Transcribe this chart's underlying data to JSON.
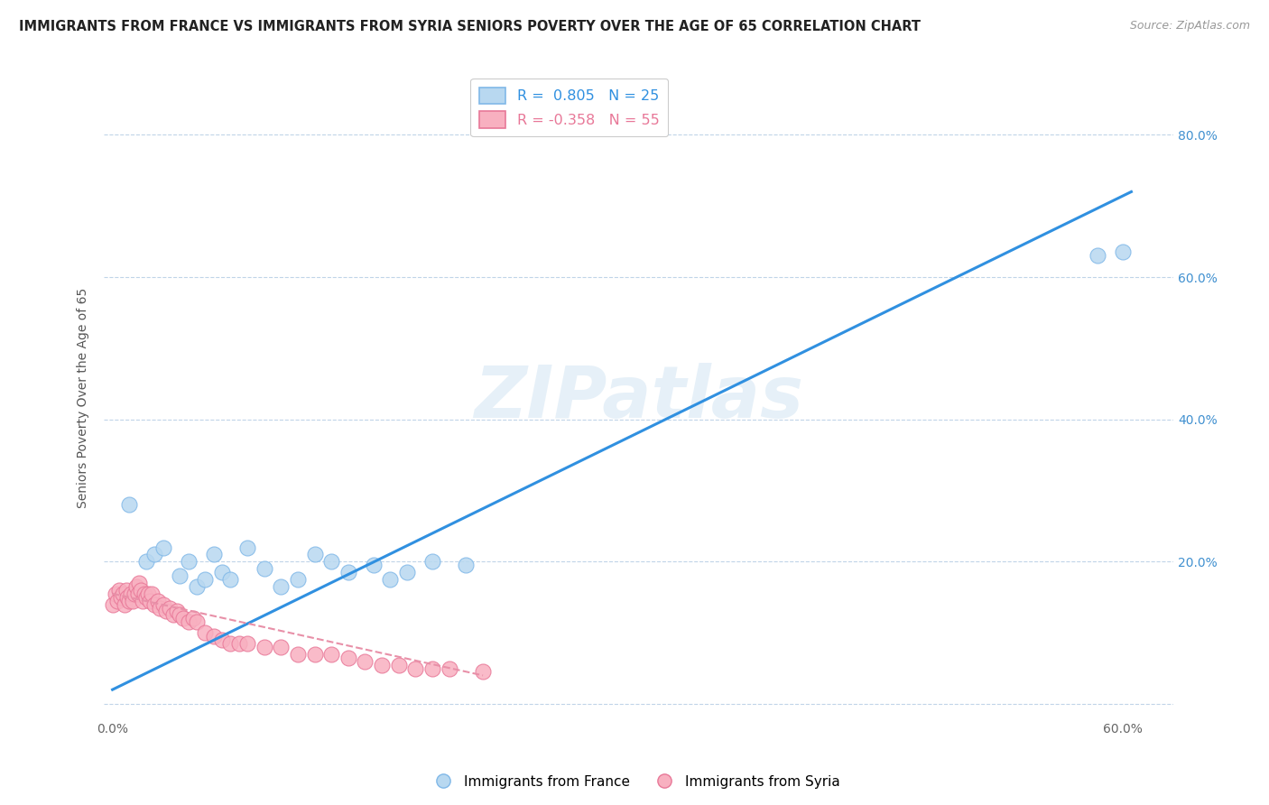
{
  "title": "IMMIGRANTS FROM FRANCE VS IMMIGRANTS FROM SYRIA SENIORS POVERTY OVER THE AGE OF 65 CORRELATION CHART",
  "source": "Source: ZipAtlas.com",
  "ylabel": "Seniors Poverty Over the Age of 65",
  "xlim": [
    -0.005,
    0.63
  ],
  "ylim": [
    -0.02,
    0.88
  ],
  "xticks": [
    0.0,
    0.1,
    0.2,
    0.3,
    0.4,
    0.5,
    0.6
  ],
  "xtick_labels": [
    "0.0%",
    "",
    "",
    "",
    "",
    "",
    "60.0%"
  ],
  "yticks": [
    0.0,
    0.2,
    0.4,
    0.6,
    0.8
  ],
  "ytick_labels_right": [
    "",
    "20.0%",
    "40.0%",
    "60.0%",
    "80.0%"
  ],
  "watermark": "ZIPatlas",
  "france_color": "#b8d8f0",
  "france_edge": "#80b8e8",
  "syria_color": "#f8b0c0",
  "syria_edge": "#e87898",
  "france_R": 0.805,
  "france_N": 25,
  "syria_R": -0.358,
  "syria_N": 55,
  "france_line_color": "#3090e0",
  "syria_line_color": "#e890a8",
  "france_line_x0": 0.0,
  "france_line_y0": 0.02,
  "france_line_x1": 0.605,
  "france_line_y1": 0.72,
  "syria_line_x0": 0.0,
  "syria_line_y0": 0.155,
  "syria_line_x1": 0.22,
  "syria_line_y1": 0.04,
  "france_scatter_x": [
    0.01,
    0.02,
    0.025,
    0.03,
    0.04,
    0.045,
    0.05,
    0.055,
    0.06,
    0.065,
    0.07,
    0.08,
    0.09,
    0.1,
    0.11,
    0.12,
    0.13,
    0.14,
    0.155,
    0.165,
    0.175,
    0.19,
    0.21,
    0.585,
    0.6
  ],
  "france_scatter_y": [
    0.28,
    0.2,
    0.21,
    0.22,
    0.18,
    0.2,
    0.165,
    0.175,
    0.21,
    0.185,
    0.175,
    0.22,
    0.19,
    0.165,
    0.175,
    0.21,
    0.2,
    0.185,
    0.195,
    0.175,
    0.185,
    0.2,
    0.195,
    0.63,
    0.635
  ],
  "syria_scatter_x": [
    0.0,
    0.002,
    0.003,
    0.004,
    0.005,
    0.006,
    0.007,
    0.008,
    0.009,
    0.01,
    0.011,
    0.012,
    0.013,
    0.014,
    0.015,
    0.016,
    0.017,
    0.018,
    0.019,
    0.02,
    0.021,
    0.022,
    0.023,
    0.025,
    0.027,
    0.028,
    0.03,
    0.032,
    0.034,
    0.036,
    0.038,
    0.04,
    0.042,
    0.045,
    0.048,
    0.05,
    0.055,
    0.06,
    0.065,
    0.07,
    0.075,
    0.08,
    0.09,
    0.1,
    0.11,
    0.12,
    0.13,
    0.14,
    0.15,
    0.16,
    0.17,
    0.18,
    0.19,
    0.2,
    0.22
  ],
  "syria_scatter_y": [
    0.14,
    0.155,
    0.145,
    0.16,
    0.15,
    0.155,
    0.14,
    0.16,
    0.15,
    0.145,
    0.155,
    0.145,
    0.155,
    0.165,
    0.155,
    0.17,
    0.16,
    0.145,
    0.155,
    0.15,
    0.155,
    0.145,
    0.155,
    0.14,
    0.145,
    0.135,
    0.14,
    0.13,
    0.135,
    0.125,
    0.13,
    0.125,
    0.12,
    0.115,
    0.12,
    0.115,
    0.1,
    0.095,
    0.09,
    0.085,
    0.085,
    0.085,
    0.08,
    0.08,
    0.07,
    0.07,
    0.07,
    0.065,
    0.06,
    0.055,
    0.055,
    0.05,
    0.05,
    0.05,
    0.045
  ],
  "legend_france_label": "Immigrants from France",
  "legend_syria_label": "Immigrants from Syria",
  "background_color": "#ffffff",
  "grid_color": "#c0d4e8",
  "title_fontsize": 10.5,
  "axis_fontsize": 10,
  "tick_fontsize": 10
}
